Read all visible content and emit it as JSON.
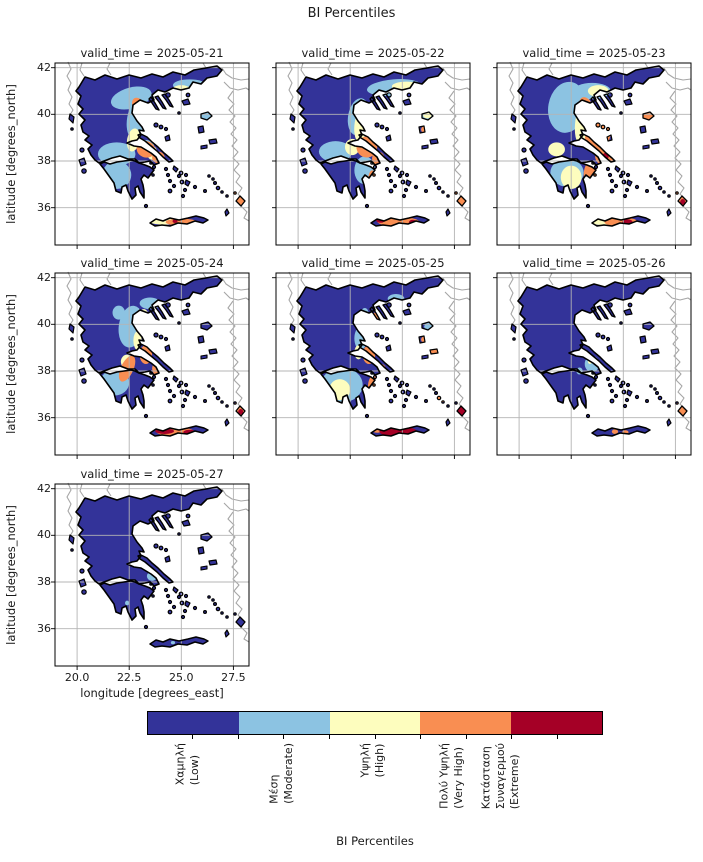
{
  "figure": {
    "suptitle": "BI Percentiles",
    "xlabel": "longitude [degrees_east]",
    "ylabel": "latitude [degrees_north]",
    "colorbar_label": "BI Percentiles",
    "x_tick_labels": [
      "20.0",
      "22.5",
      "25.0",
      "27.5"
    ],
    "y_tick_labels": [
      "42",
      "40",
      "38",
      "36"
    ]
  },
  "chart_data": {
    "type": "heatmap",
    "subtype": "faceted categorical geographic maps (Greece fire-danger percentile classes)",
    "facet_variable": "valid_time",
    "grid": true,
    "legend_position": "bottom horizontal colorbar",
    "x": {
      "label": "longitude [degrees_east]",
      "range": [
        18.94,
        28.25
      ],
      "ticks": [
        20.0,
        22.5,
        25.0,
        27.5
      ]
    },
    "y": {
      "label": "latitude [degrees_north]",
      "range": [
        34.4,
        42.2
      ],
      "ticks": [
        42,
        40,
        38,
        36
      ]
    },
    "categories": [
      {
        "key": "low",
        "label_lines": [
          "Χαμηλή",
          "(Low)"
        ],
        "color": "#333399"
      },
      {
        "key": "moderate",
        "label_lines": [
          "Μέση",
          "(Moderate)"
        ],
        "color": "#8CC3E2"
      },
      {
        "key": "high",
        "label_lines": [
          "Υψηλή",
          "(High)"
        ],
        "color": "#FDFDBE"
      },
      {
        "key": "very_high",
        "label_lines": [
          "Πολύ Υψηλή",
          "(Very High)"
        ],
        "color": "#F98E52"
      },
      {
        "key": "extreme",
        "label_lines": [
          "Κατάσταση",
          "Συναγερμού",
          "(Extreme)"
        ],
        "color": "#A50026"
      }
    ],
    "base_class": "low",
    "panels": [
      {
        "title": "valid_time = 2025-05-21",
        "date": "2025-05-21",
        "summary": "Low NW mainland; moderate band through central Greece and W Peloponnese; high/very-high around E Thessaly, Attica, Evia; S Crete orange with one extreme pixel; Rhodes very high.",
        "patches": [
          [
            22.6,
            40.7,
            1.0,
            0.45,
            -15,
            "moderate"
          ],
          [
            22.9,
            39.8,
            0.5,
            0.9,
            10,
            "moderate"
          ],
          [
            21.9,
            38.3,
            0.9,
            0.5,
            0,
            "moderate"
          ],
          [
            21.9,
            37.4,
            0.7,
            0.6,
            0,
            "moderate"
          ],
          [
            25.4,
            41.25,
            0.8,
            0.25,
            0,
            "moderate"
          ],
          [
            23.3,
            38.6,
            0.4,
            0.3,
            0,
            "moderate"
          ],
          [
            26.2,
            39.9,
            0.25,
            0.2,
            0,
            "moderate"
          ],
          [
            23.2,
            40.1,
            0.35,
            0.5,
            -20,
            "high"
          ],
          [
            22.7,
            38.9,
            0.3,
            0.5,
            10,
            "high"
          ],
          [
            24.2,
            35.45,
            0.8,
            0.18,
            0,
            "high"
          ],
          [
            23.6,
            38.35,
            0.25,
            0.3,
            0,
            "high"
          ],
          [
            25.0,
            41.1,
            0.4,
            0.15,
            0,
            "high"
          ],
          [
            23.0,
            40.3,
            0.3,
            0.45,
            -30,
            "very_high"
          ],
          [
            23.3,
            38.5,
            0.45,
            0.35,
            20,
            "very_high"
          ],
          [
            23.9,
            38.15,
            0.3,
            0.25,
            0,
            "very_high"
          ],
          [
            23.5,
            36.9,
            0.2,
            0.4,
            0,
            "very_high"
          ],
          [
            25.0,
            35.38,
            0.75,
            0.15,
            0,
            "very_high"
          ],
          [
            27.85,
            36.3,
            0.45,
            0.45,
            0,
            "very_high"
          ],
          [
            24.7,
            35.42,
            0.12,
            0.08,
            0,
            "extreme"
          ]
        ]
      },
      {
        "title": "valid_time = 2025-05-22",
        "date": "2025-05-22",
        "summary": "Moderate/high along N and NE mainland; very high Attica, Evia, E coasts; Crete orange with extreme pockets; Rhodes very high.",
        "patches": [
          [
            24.6,
            41.15,
            1.3,
            0.35,
            -5,
            "moderate"
          ],
          [
            22.9,
            39.9,
            0.5,
            0.8,
            10,
            "moderate"
          ],
          [
            21.8,
            38.4,
            0.8,
            0.45,
            0,
            "moderate"
          ],
          [
            23.2,
            37.6,
            0.5,
            0.6,
            0,
            "moderate"
          ],
          [
            26.2,
            39.9,
            0.3,
            0.2,
            0,
            "moderate"
          ],
          [
            25.2,
            41.2,
            0.7,
            0.2,
            0,
            "high"
          ],
          [
            23.0,
            39.5,
            0.3,
            0.7,
            5,
            "high"
          ],
          [
            22.6,
            38.6,
            0.35,
            0.35,
            0,
            "high"
          ],
          [
            26.2,
            39.95,
            0.2,
            0.12,
            0,
            "high"
          ],
          [
            23.1,
            40.2,
            0.25,
            0.4,
            -20,
            "very_high"
          ],
          [
            23.3,
            38.6,
            0.5,
            0.45,
            15,
            "very_high"
          ],
          [
            23.85,
            38.1,
            0.3,
            0.3,
            0,
            "very_high"
          ],
          [
            23.55,
            37.1,
            0.2,
            0.5,
            0,
            "very_high"
          ],
          [
            24.8,
            35.4,
            1.0,
            0.2,
            0,
            "very_high"
          ],
          [
            27.85,
            36.3,
            0.45,
            0.45,
            0,
            "very_high"
          ],
          [
            26.1,
            39.35,
            0.2,
            0.15,
            0,
            "very_high"
          ],
          [
            23.95,
            35.45,
            0.2,
            0.1,
            0,
            "extreme"
          ],
          [
            25.5,
            35.38,
            0.18,
            0.1,
            0,
            "extreme"
          ],
          [
            23.9,
            38.05,
            0.1,
            0.1,
            0,
            "extreme"
          ]
        ]
      },
      {
        "title": "valid_time = 2025-05-23",
        "date": "2025-05-23",
        "summary": "Peak day: large very-high zone over E-central mainland with extreme spots; broad moderate/high bands; Crete orange plus extreme; Rhodes very high/extreme.",
        "patches": [
          [
            22.3,
            40.3,
            0.9,
            1.1,
            10,
            "moderate"
          ],
          [
            23.5,
            41.0,
            0.9,
            0.35,
            0,
            "moderate"
          ],
          [
            22.3,
            37.5,
            0.8,
            0.6,
            0,
            "moderate"
          ],
          [
            26.2,
            39.9,
            0.3,
            0.2,
            0,
            "moderate"
          ],
          [
            23.1,
            39.7,
            0.4,
            1.0,
            8,
            "high"
          ],
          [
            23.8,
            41.0,
            0.5,
            0.25,
            0,
            "high"
          ],
          [
            22.5,
            37.3,
            0.5,
            0.5,
            0,
            "high"
          ],
          [
            24.1,
            35.45,
            0.9,
            0.2,
            0,
            "high"
          ],
          [
            21.8,
            38.5,
            0.4,
            0.3,
            0,
            "high"
          ],
          [
            23.8,
            39.2,
            0.6,
            0.9,
            15,
            "very_high"
          ],
          [
            24.1,
            38.2,
            0.45,
            0.4,
            0,
            "very_high"
          ],
          [
            23.2,
            40.35,
            0.3,
            0.4,
            -20,
            "very_high"
          ],
          [
            23.4,
            37.4,
            0.3,
            0.55,
            0,
            "very_high"
          ],
          [
            24.9,
            35.38,
            0.8,
            0.2,
            0,
            "very_high"
          ],
          [
            27.85,
            36.3,
            0.45,
            0.45,
            0,
            "very_high"
          ],
          [
            26.2,
            39.9,
            0.25,
            0.15,
            0,
            "very_high"
          ],
          [
            24.0,
            38.85,
            0.15,
            0.25,
            0,
            "extreme"
          ],
          [
            24.15,
            38.2,
            0.15,
            0.15,
            0,
            "extreme"
          ],
          [
            25.2,
            35.38,
            0.25,
            0.12,
            0,
            "extreme"
          ],
          [
            27.85,
            36.25,
            0.12,
            0.12,
            0,
            "extreme"
          ]
        ]
      },
      {
        "title": "valid_time = 2025-05-24",
        "date": "2025-05-24",
        "summary": "Low north; moderate central band; very-high strip along W-central coast and Attica; Crete extreme west and east; Rhodes very high.",
        "patches": [
          [
            22.6,
            39.9,
            0.6,
            0.9,
            8,
            "moderate"
          ],
          [
            23.5,
            40.9,
            0.5,
            0.25,
            0,
            "moderate"
          ],
          [
            21.8,
            37.5,
            0.7,
            0.55,
            0,
            "moderate"
          ],
          [
            22.0,
            40.5,
            0.3,
            0.3,
            0,
            "moderate"
          ],
          [
            23.2,
            40.3,
            0.25,
            0.35,
            0,
            "high"
          ],
          [
            22.4,
            38.4,
            0.3,
            0.3,
            0,
            "high"
          ],
          [
            24.4,
            35.45,
            0.5,
            0.15,
            0,
            "high"
          ],
          [
            22.9,
            39.3,
            0.2,
            0.4,
            0,
            "high"
          ],
          [
            22.4,
            38.1,
            0.3,
            0.6,
            25,
            "very_high"
          ],
          [
            23.3,
            38.7,
            0.3,
            0.4,
            0,
            "very_high"
          ],
          [
            23.8,
            38.1,
            0.2,
            0.25,
            0,
            "very_high"
          ],
          [
            23.5,
            36.9,
            0.15,
            0.4,
            0,
            "very_high"
          ],
          [
            24.7,
            35.4,
            0.9,
            0.2,
            0,
            "very_high"
          ],
          [
            27.85,
            36.3,
            0.42,
            0.42,
            0,
            "very_high"
          ],
          [
            24.2,
            35.42,
            0.45,
            0.12,
            0,
            "extreme"
          ],
          [
            25.4,
            35.38,
            0.3,
            0.1,
            0,
            "extreme"
          ],
          [
            27.85,
            36.25,
            0.12,
            0.12,
            0,
            "extreme"
          ]
        ]
      },
      {
        "title": "valid_time = 2025-05-25",
        "date": "2025-05-25",
        "summary": "Low north mainland; Peloponnese moderate/high with very-high east fringe; Crete mostly extreme; Rhodes extreme.",
        "patches": [
          [
            22.1,
            37.4,
            1.0,
            0.75,
            0,
            "moderate"
          ],
          [
            23.0,
            39.4,
            0.3,
            0.5,
            0,
            "moderate"
          ],
          [
            24.7,
            41.1,
            0.4,
            0.2,
            0,
            "moderate"
          ],
          [
            26.3,
            39.9,
            0.25,
            0.18,
            0,
            "moderate"
          ],
          [
            23.2,
            40.4,
            0.2,
            0.3,
            0,
            "moderate"
          ],
          [
            22.0,
            37.2,
            0.5,
            0.45,
            0,
            "high"
          ],
          [
            22.9,
            38.8,
            0.2,
            0.3,
            0,
            "high"
          ],
          [
            23.7,
            40.3,
            0.2,
            0.2,
            0,
            "very_high"
          ],
          [
            23.4,
            38.7,
            0.3,
            0.4,
            0,
            "very_high"
          ],
          [
            23.6,
            37.3,
            0.25,
            0.5,
            0,
            "very_high"
          ],
          [
            26.1,
            39.35,
            0.2,
            0.14,
            0,
            "very_high"
          ],
          [
            26.55,
            38.85,
            0.2,
            0.12,
            0,
            "very_high"
          ],
          [
            23.8,
            35.5,
            0.3,
            0.15,
            0,
            "very_high"
          ],
          [
            24.0,
            38.1,
            0.2,
            0.2,
            0,
            "very_high"
          ],
          [
            26.85,
            36.85,
            0.25,
            0.2,
            0,
            "very_high"
          ],
          [
            24.8,
            35.4,
            0.9,
            0.22,
            0,
            "extreme"
          ],
          [
            27.85,
            36.3,
            0.4,
            0.4,
            0,
            "extreme"
          ]
        ]
      },
      {
        "title": "valid_time = 2025-05-26",
        "date": "2025-05-26",
        "summary": "Low nearly everywhere; small moderate patch near Attica/Boeotia; Rhodes very high; minor very-high dots on Crete.",
        "patches": [
          [
            23.5,
            38.3,
            0.35,
            0.35,
            0,
            "moderate"
          ],
          [
            22.9,
            38.0,
            0.15,
            0.15,
            0,
            "moderate"
          ],
          [
            23.4,
            38.4,
            0.1,
            0.1,
            0,
            "high"
          ],
          [
            27.85,
            36.3,
            0.42,
            0.42,
            0,
            "very_high"
          ],
          [
            24.6,
            35.4,
            0.15,
            0.1,
            0,
            "very_high"
          ],
          [
            25.1,
            35.38,
            0.15,
            0.08,
            0,
            "very_high"
          ]
        ]
      },
      {
        "title": "valid_time = 2025-05-27",
        "date": "2025-05-27",
        "summary": "Low everywhere; only tiny moderate patches near Attica and a dot on Crete.",
        "patches": [
          [
            23.6,
            38.25,
            0.25,
            0.2,
            0,
            "moderate"
          ],
          [
            22.4,
            37.1,
            0.1,
            0.1,
            0,
            "moderate"
          ],
          [
            24.6,
            35.4,
            0.1,
            0.07,
            0,
            "moderate"
          ]
        ]
      }
    ]
  }
}
